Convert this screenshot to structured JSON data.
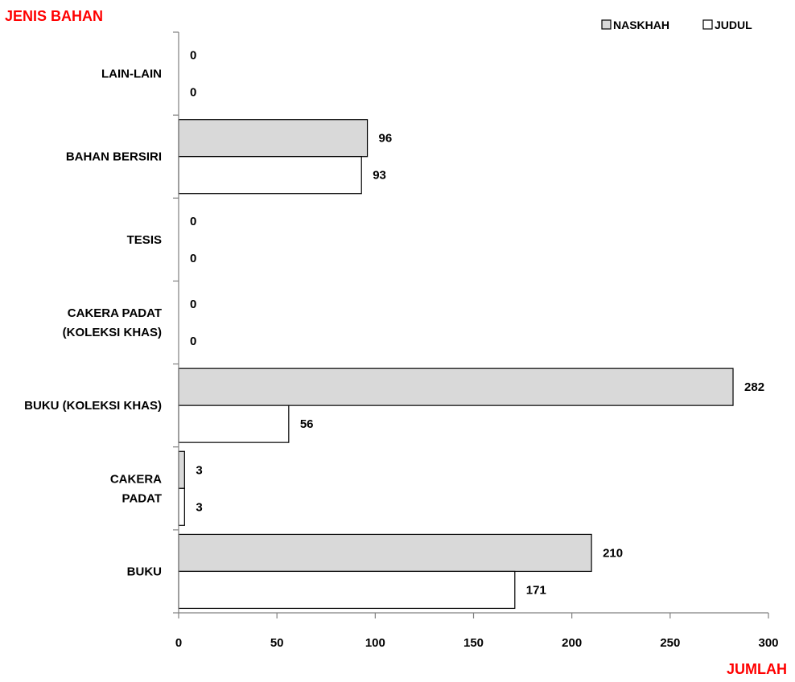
{
  "chart_data": {
    "type": "bar",
    "orientation": "horizontal",
    "ylabel": "JENIS BAHAN",
    "xlabel": "JUMLAH",
    "categories": [
      [
        "BUKU"
      ],
      [
        "CAKERA",
        "PADAT"
      ],
      [
        "BUKU (KOLEKSI KHAS)"
      ],
      [
        "CAKERA PADAT",
        "(KOLEKSI KHAS)"
      ],
      [
        "TESIS"
      ],
      [
        "BAHAN BERSIRI"
      ],
      [
        "LAIN-LAIN"
      ]
    ],
    "series": [
      {
        "name": "NASKHAH",
        "color": "#d9d9d9",
        "values": [
          210,
          3,
          282,
          0,
          0,
          96,
          0
        ]
      },
      {
        "name": "JUDUL",
        "color": "#ffffff",
        "values": [
          171,
          3,
          56,
          0,
          0,
          93,
          0
        ]
      }
    ],
    "xlim": [
      0,
      300
    ],
    "xticks": [
      0,
      50,
      100,
      150,
      200,
      250,
      300
    ],
    "grid": false,
    "legend_position": "top-right",
    "axis_title_color": "#ff0000",
    "data_labels": true
  }
}
